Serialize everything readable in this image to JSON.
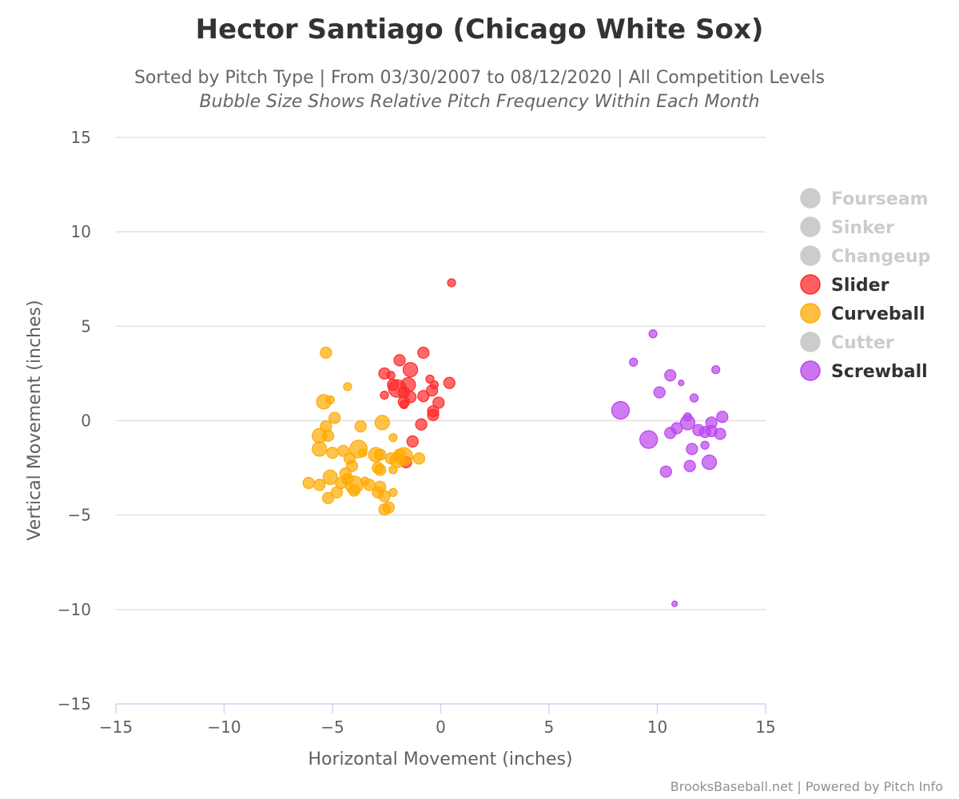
{
  "chart_data": {
    "type": "scatter",
    "title": "Hector Santiago (Chicago White Sox)",
    "subtitle": "Sorted by Pitch Type | From 03/30/2007 to 08/12/2020 | All Competition Levels",
    "subtitle2": "Bubble Size Shows Relative Pitch Frequency Within Each Month",
    "xlabel": "Horizontal Movement (inches)",
    "ylabel": "Vertical Movement (inches)",
    "xlim": [
      -15,
      15
    ],
    "ylim": [
      -15,
      15
    ],
    "xticks": [
      "−15",
      "−10",
      "−5",
      "0",
      "5",
      "10",
      "15"
    ],
    "xtick_values": [
      -15,
      -10,
      -5,
      0,
      5,
      10,
      15
    ],
    "yticks": [
      "15",
      "10",
      "5",
      "0",
      "−5",
      "−10",
      "−15"
    ],
    "ytick_values": [
      15,
      10,
      5,
      0,
      -5,
      -10,
      -15
    ],
    "grid": "horizontal",
    "legend_position": "right",
    "credits": "BrooksBaseball.net | Powered by Pitch Info",
    "series": [
      {
        "name": "Fourseam",
        "color": "#cccccc",
        "active": false,
        "points": []
      },
      {
        "name": "Sinker",
        "color": "#cccccc",
        "active": false,
        "points": []
      },
      {
        "name": "Changeup",
        "color": "#cccccc",
        "active": false,
        "points": []
      },
      {
        "name": "Slider",
        "color": "#ff2a2a",
        "active": true,
        "points": [
          [
            0.5,
            7.3,
            2
          ],
          [
            -0.8,
            3.6,
            3
          ],
          [
            -1.9,
            3.2,
            3
          ],
          [
            -2.6,
            2.5,
            3
          ],
          [
            -2.3,
            2.4,
            2
          ],
          [
            -1.4,
            2.7,
            4
          ],
          [
            -0.5,
            2.2,
            2
          ],
          [
            0.4,
            2.0,
            3
          ],
          [
            -0.3,
            1.9,
            2
          ],
          [
            -2.2,
            1.9,
            3
          ],
          [
            -1.5,
            1.9,
            4
          ],
          [
            -2.0,
            1.7,
            5
          ],
          [
            -1.7,
            1.5,
            3
          ],
          [
            -0.4,
            1.6,
            3
          ],
          [
            -2.6,
            1.35,
            2
          ],
          [
            -0.8,
            1.3,
            3
          ],
          [
            -1.4,
            1.25,
            3
          ],
          [
            -1.7,
            1.0,
            3
          ],
          [
            -1.7,
            0.85,
            2
          ],
          [
            -0.1,
            0.95,
            3
          ],
          [
            -0.35,
            0.5,
            3
          ],
          [
            -0.35,
            0.3,
            3
          ],
          [
            -0.9,
            -0.2,
            3
          ],
          [
            -1.3,
            -1.1,
            3
          ],
          [
            -1.6,
            -2.2,
            3
          ]
        ]
      },
      {
        "name": "Curveball",
        "color": "#ffaa00",
        "active": true,
        "points": [
          [
            -5.3,
            3.6,
            3
          ],
          [
            -4.3,
            1.8,
            2
          ],
          [
            -5.4,
            1.0,
            4
          ],
          [
            -5.1,
            1.1,
            2
          ],
          [
            -4.9,
            0.15,
            3
          ],
          [
            -2.7,
            -0.1,
            4
          ],
          [
            -5.3,
            -0.3,
            3
          ],
          [
            -3.7,
            -0.3,
            3
          ],
          [
            -5.6,
            -0.8,
            4
          ],
          [
            -5.2,
            -0.8,
            3
          ],
          [
            -2.2,
            -0.9,
            2
          ],
          [
            -5.6,
            -1.5,
            4
          ],
          [
            -5.0,
            -1.7,
            3
          ],
          [
            -4.5,
            -1.6,
            3
          ],
          [
            -3.8,
            -1.5,
            5
          ],
          [
            -4.2,
            -2.0,
            3
          ],
          [
            -3.6,
            -1.7,
            2
          ],
          [
            -3.0,
            -1.8,
            4
          ],
          [
            -2.8,
            -1.8,
            3
          ],
          [
            -1.9,
            -1.8,
            3
          ],
          [
            -1.7,
            -1.9,
            5
          ],
          [
            -1.0,
            -2.0,
            3
          ],
          [
            -2.3,
            -2.0,
            3
          ],
          [
            -2.0,
            -2.1,
            4
          ],
          [
            -4.1,
            -2.4,
            3
          ],
          [
            -2.9,
            -2.5,
            3
          ],
          [
            -2.8,
            -2.6,
            3
          ],
          [
            -2.2,
            -2.6,
            2
          ],
          [
            -4.4,
            -2.8,
            3
          ],
          [
            -5.1,
            -3.0,
            4
          ],
          [
            -4.3,
            -3.1,
            3
          ],
          [
            -4.6,
            -3.3,
            3
          ],
          [
            -3.5,
            -3.2,
            2
          ],
          [
            -6.1,
            -3.3,
            3
          ],
          [
            -5.6,
            -3.4,
            3
          ],
          [
            -4.0,
            -3.4,
            5
          ],
          [
            -3.3,
            -3.4,
            3
          ],
          [
            -2.8,
            -3.5,
            3
          ],
          [
            -4.0,
            -3.7,
            3
          ],
          [
            -2.9,
            -3.8,
            3
          ],
          [
            -4.8,
            -3.8,
            3
          ],
          [
            -2.2,
            -3.8,
            2
          ],
          [
            -5.2,
            -4.1,
            3
          ],
          [
            -2.6,
            -4.0,
            3
          ],
          [
            -2.4,
            -4.6,
            3
          ],
          [
            -2.6,
            -4.7,
            3
          ]
        ]
      },
      {
        "name": "Cutter",
        "color": "#cccccc",
        "active": false,
        "points": []
      },
      {
        "name": "Screwball",
        "color": "#bb44ee",
        "active": true,
        "points": [
          [
            9.8,
            4.6,
            2
          ],
          [
            8.9,
            3.1,
            2
          ],
          [
            10.6,
            2.4,
            3
          ],
          [
            11.1,
            2.0,
            1
          ],
          [
            12.7,
            2.7,
            2
          ],
          [
            10.1,
            1.5,
            3
          ],
          [
            11.7,
            1.2,
            2
          ],
          [
            8.3,
            0.55,
            5
          ],
          [
            11.4,
            0.2,
            2
          ],
          [
            13.0,
            0.2,
            3
          ],
          [
            11.4,
            -0.1,
            4
          ],
          [
            12.5,
            -0.1,
            3
          ],
          [
            10.9,
            -0.4,
            3
          ],
          [
            11.9,
            -0.5,
            3
          ],
          [
            12.5,
            -0.55,
            3
          ],
          [
            12.2,
            -0.6,
            3
          ],
          [
            10.6,
            -0.65,
            3
          ],
          [
            12.9,
            -0.7,
            3
          ],
          [
            9.6,
            -1.0,
            5
          ],
          [
            12.2,
            -1.3,
            2
          ],
          [
            11.6,
            -1.5,
            3
          ],
          [
            12.4,
            -2.2,
            4
          ],
          [
            11.5,
            -2.4,
            3
          ],
          [
            10.4,
            -2.7,
            3
          ],
          [
            10.8,
            -9.7,
            1
          ]
        ]
      }
    ]
  }
}
